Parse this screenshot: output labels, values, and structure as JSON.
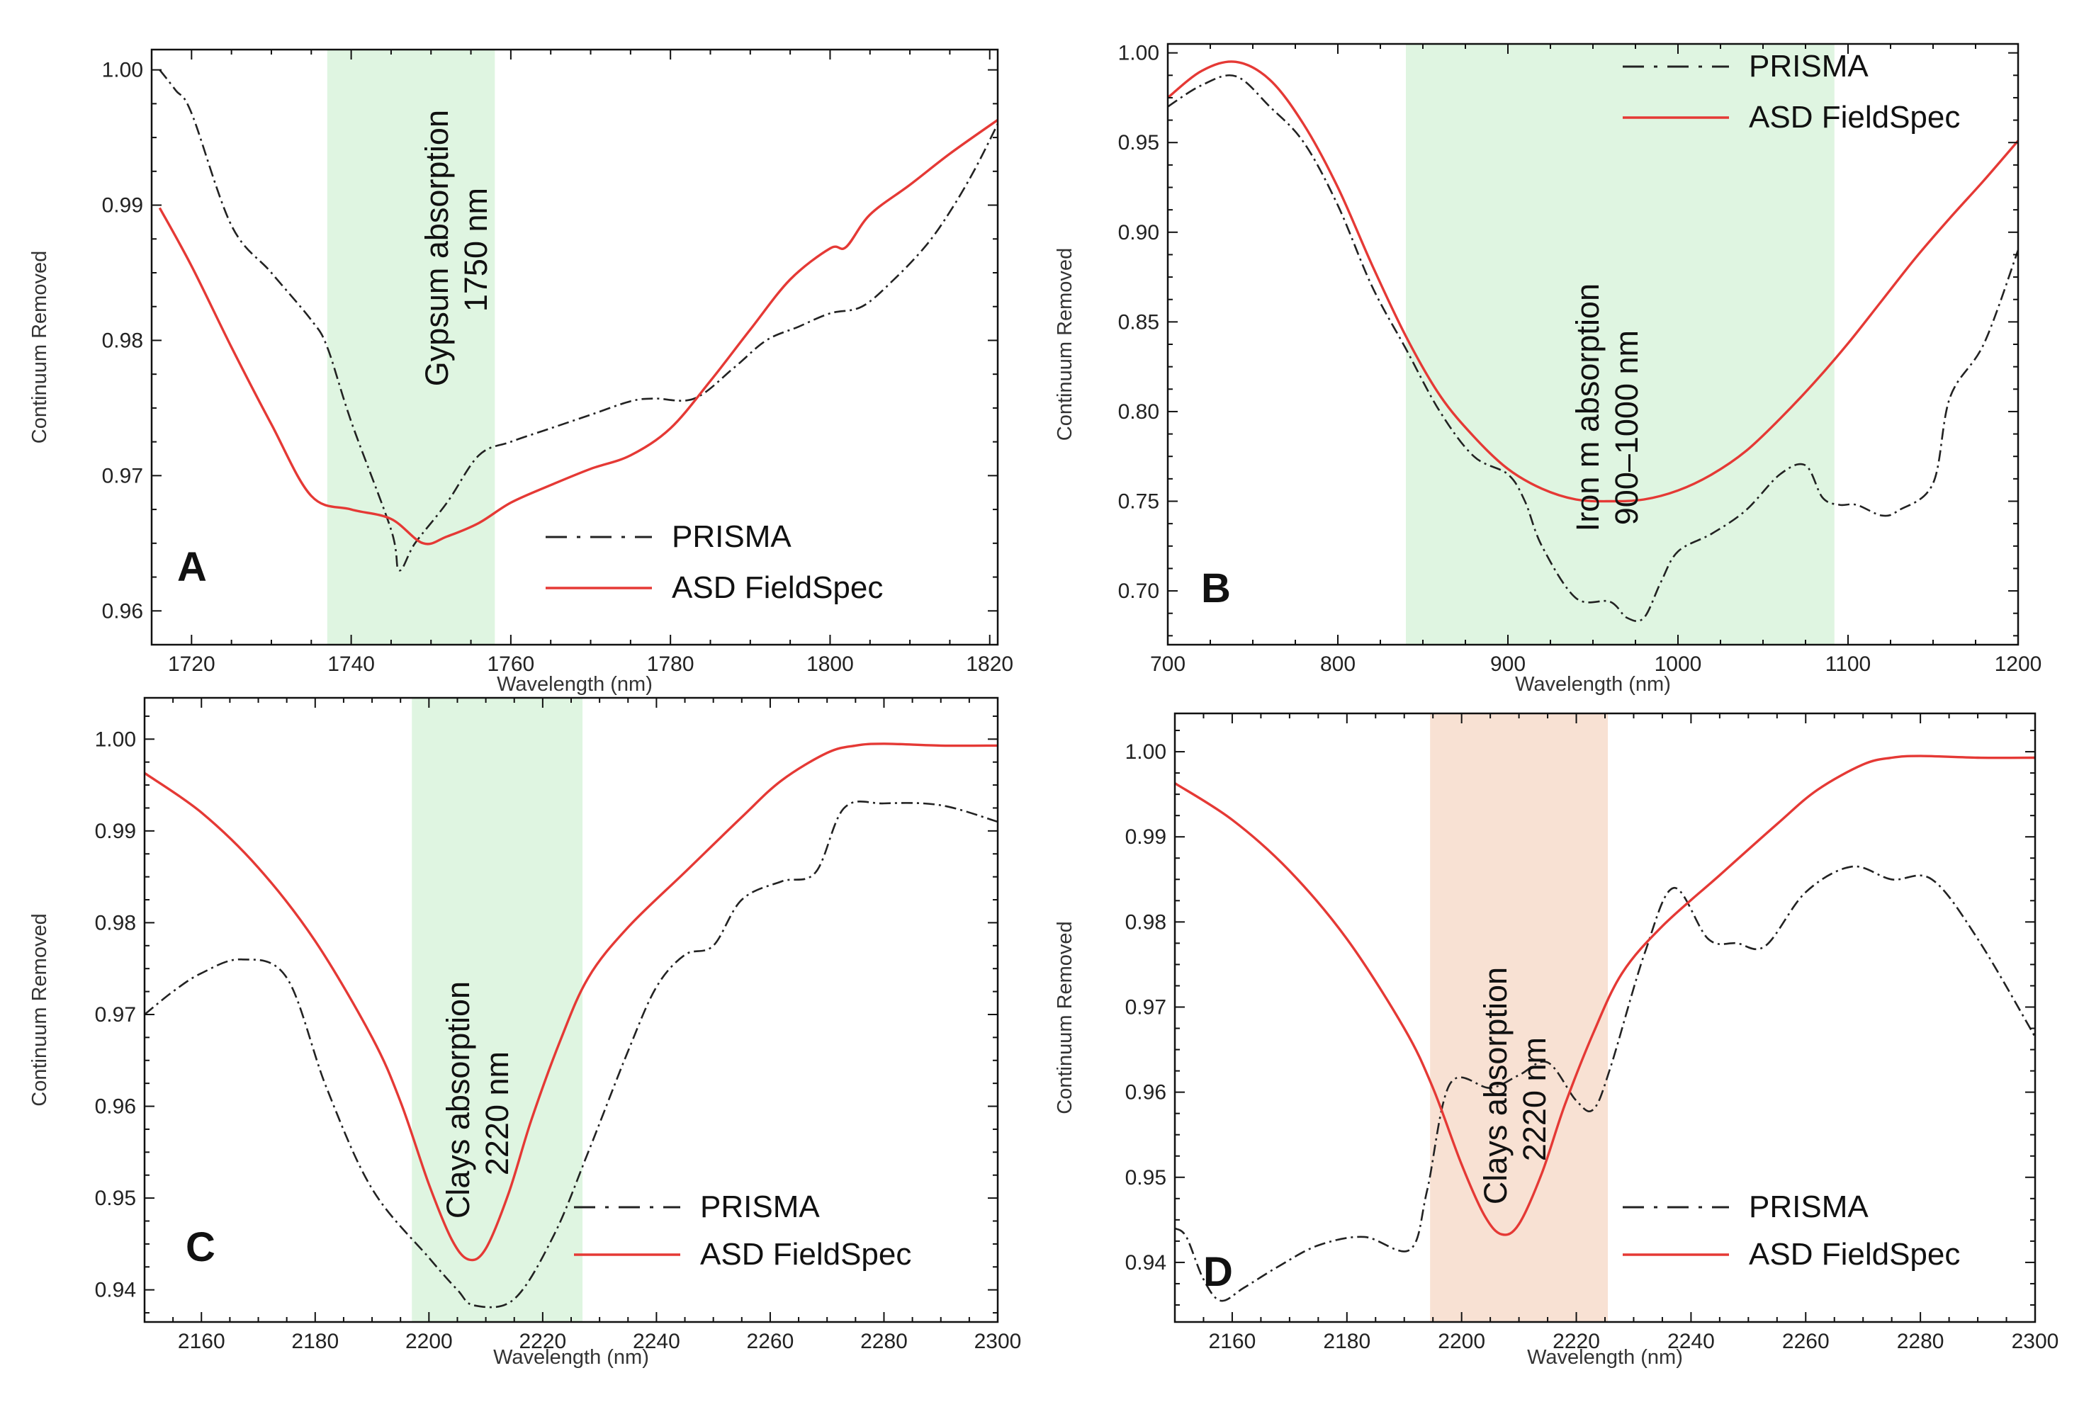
{
  "figure": {
    "background": "#ffffff"
  },
  "styles": {
    "prisma_color": "#222222",
    "asd_color": "#e53935",
    "green_band": "#dff5e1",
    "orange_band": "#f8e1d3"
  },
  "chart_data": [
    {
      "panel": "A",
      "type": "line",
      "xlabel": "Wavelength (nm)",
      "ylabel": "Continuum Removed",
      "xlim": [
        1715,
        1821
      ],
      "ylim": [
        0.9575,
        1.0015
      ],
      "xticks": [
        1720,
        1740,
        1760,
        1780,
        1800,
        1820
      ],
      "yticks": [
        0.96,
        0.97,
        0.98,
        0.99,
        1.0
      ],
      "ytick_labels": [
        "0.96",
        "0.97",
        "0.98",
        "0.99",
        "1.00"
      ],
      "band": {
        "from": 1737,
        "to": 1758,
        "color": "green",
        "label_lines": [
          "Gypsum absorption",
          "1750 nm"
        ]
      },
      "legend": {
        "position": "bottom-right",
        "entries": [
          "PRISMA",
          "ASD FieldSpec"
        ]
      },
      "series": [
        {
          "name": "PRISMA",
          "style": "dashdot",
          "x": [
            1716,
            1718,
            1720,
            1725,
            1730,
            1735,
            1737,
            1740,
            1745,
            1746,
            1748,
            1752,
            1756,
            1760,
            1765,
            1770,
            1775,
            1778,
            1783,
            1788,
            1792,
            1796,
            1800,
            1804,
            1808,
            1812,
            1815,
            1818,
            1821
          ],
          "y": [
            1.0,
            0.9985,
            0.9968,
            0.9885,
            0.985,
            0.9815,
            0.9795,
            0.974,
            0.966,
            0.963,
            0.965,
            0.968,
            0.9715,
            0.9725,
            0.9735,
            0.9745,
            0.9755,
            0.9757,
            0.9757,
            0.978,
            0.98,
            0.981,
            0.982,
            0.9825,
            0.9845,
            0.987,
            0.9895,
            0.9925,
            0.996
          ]
        },
        {
          "name": "ASD FieldSpec",
          "style": "solid",
          "x": [
            1716,
            1720,
            1725,
            1730,
            1735,
            1740,
            1745,
            1749,
            1752,
            1756,
            1760,
            1765,
            1770,
            1775,
            1780,
            1785,
            1790,
            1795,
            1800,
            1802,
            1805,
            1810,
            1815,
            1821
          ],
          "y": [
            0.9898,
            0.9855,
            0.9795,
            0.9738,
            0.9685,
            0.9675,
            0.9668,
            0.965,
            0.9655,
            0.9665,
            0.968,
            0.9693,
            0.9705,
            0.9715,
            0.9735,
            0.977,
            0.9808,
            0.9845,
            0.9868,
            0.9869,
            0.9893,
            0.9915,
            0.9938,
            0.9963
          ]
        }
      ]
    },
    {
      "panel": "B",
      "type": "line",
      "xlabel": "Wavelength (nm)",
      "ylabel": "Continuum Removed",
      "xlim": [
        700,
        1200
      ],
      "ylim": [
        0.67,
        1.005
      ],
      "xticks": [
        700,
        800,
        900,
        1000,
        1100,
        1200
      ],
      "yticks": [
        0.7,
        0.75,
        0.8,
        0.85,
        0.9,
        0.95,
        1.0
      ],
      "ytick_labels": [
        "0.70",
        "0.75",
        "0.80",
        "0.85",
        "0.90",
        "0.95",
        "1.00"
      ],
      "band": {
        "from": 840,
        "to": 1092,
        "color": "green",
        "label_lines": [
          "Iron m absorption",
          "900–1000 nm"
        ]
      },
      "legend": {
        "position": "top-right",
        "entries": [
          "PRISMA",
          "ASD FieldSpec"
        ]
      },
      "series": [
        {
          "name": "PRISMA",
          "style": "dashdot",
          "x": [
            700,
            720,
            740,
            760,
            780,
            800,
            820,
            840,
            860,
            880,
            900,
            910,
            920,
            940,
            960,
            970,
            980,
            990,
            1000,
            1020,
            1040,
            1060,
            1075,
            1085,
            1095,
            1105,
            1120,
            1130,
            1150,
            1160,
            1180,
            1200
          ],
          "y": [
            0.97,
            0.982,
            0.987,
            0.97,
            0.95,
            0.915,
            0.87,
            0.835,
            0.8,
            0.775,
            0.765,
            0.75,
            0.725,
            0.696,
            0.694,
            0.685,
            0.685,
            0.705,
            0.722,
            0.732,
            0.745,
            0.765,
            0.77,
            0.752,
            0.748,
            0.748,
            0.742,
            0.745,
            0.76,
            0.808,
            0.838,
            0.89
          ]
        },
        {
          "name": "ASD FieldSpec",
          "style": "solid",
          "x": [
            700,
            720,
            740,
            760,
            780,
            800,
            820,
            840,
            860,
            880,
            900,
            920,
            940,
            960,
            980,
            1000,
            1020,
            1040,
            1060,
            1080,
            1100,
            1120,
            1140,
            1160,
            1180,
            1200
          ],
          "y": [
            0.975,
            0.99,
            0.995,
            0.985,
            0.96,
            0.925,
            0.882,
            0.842,
            0.809,
            0.786,
            0.768,
            0.757,
            0.751,
            0.75,
            0.751,
            0.756,
            0.765,
            0.778,
            0.796,
            0.816,
            0.838,
            0.862,
            0.886,
            0.908,
            0.929,
            0.951
          ]
        }
      ]
    },
    {
      "panel": "C",
      "type": "line",
      "xlabel": "Wavelength (nm)",
      "ylabel": "Continuum Removed",
      "xlim": [
        2150,
        2300
      ],
      "ylim": [
        0.9365,
        1.0045
      ],
      "xticks": [
        2160,
        2180,
        2200,
        2220,
        2240,
        2260,
        2280,
        2300
      ],
      "yticks": [
        0.94,
        0.95,
        0.96,
        0.97,
        0.98,
        0.99,
        1.0
      ],
      "ytick_labels": [
        "0.94",
        "0.95",
        "0.96",
        "0.97",
        "0.98",
        "0.99",
        "1.00"
      ],
      "band": {
        "from": 2197,
        "to": 2227,
        "color": "green",
        "label_lines": [
          "Clays absorption",
          "2220 nm"
        ]
      },
      "legend": {
        "position": "bottom-right",
        "entries": [
          "PRISMA",
          "ASD FieldSpec"
        ]
      },
      "series": [
        {
          "name": "PRISMA",
          "style": "dashdot",
          "x": [
            2150,
            2155,
            2160,
            2167,
            2175,
            2182,
            2190,
            2200,
            2205,
            2208,
            2215,
            2222,
            2228,
            2235,
            2240,
            2245,
            2250,
            2255,
            2262,
            2268,
            2273,
            2280,
            2290,
            2300
          ],
          "y": [
            0.97,
            0.9725,
            0.9745,
            0.976,
            0.974,
            0.962,
            0.951,
            0.9435,
            0.94,
            0.9383,
            0.939,
            0.946,
            0.955,
            0.966,
            0.973,
            0.9765,
            0.9775,
            0.9825,
            0.9845,
            0.9855,
            0.9925,
            0.993,
            0.9928,
            0.991
          ]
        },
        {
          "name": "ASD FieldSpec",
          "style": "solid",
          "x": [
            2150,
            2160,
            2170,
            2180,
            2190,
            2195,
            2200,
            2204,
            2207,
            2210,
            2214,
            2218,
            2223,
            2228,
            2235,
            2245,
            2255,
            2262,
            2270,
            2275,
            2280,
            2290,
            2300
          ],
          "y": [
            0.9963,
            0.992,
            0.986,
            0.978,
            0.9675,
            0.9605,
            0.9515,
            0.9455,
            0.9433,
            0.9445,
            0.9505,
            0.9585,
            0.967,
            0.974,
            0.9795,
            0.9855,
            0.9915,
            0.9955,
            0.9985,
            0.9993,
            0.9995,
            0.9993,
            0.9993
          ]
        }
      ]
    },
    {
      "panel": "D",
      "type": "line",
      "xlabel": "Wavelength (nm)",
      "ylabel": "Continuum Removed",
      "xlim": [
        2150,
        2300
      ],
      "ylim": [
        0.933,
        1.0045
      ],
      "xticks": [
        2160,
        2180,
        2200,
        2220,
        2240,
        2260,
        2280,
        2300
      ],
      "yticks": [
        0.94,
        0.95,
        0.96,
        0.97,
        0.98,
        0.99,
        1.0
      ],
      "ytick_labels": [
        "0.94",
        "0.95",
        "0.96",
        "0.97",
        "0.98",
        "0.99",
        "1.00"
      ],
      "band": {
        "from": 2194.5,
        "to": 2225.5,
        "color": "orange",
        "label_lines": [
          "Clays absorption",
          "2220 nm"
        ]
      },
      "legend": {
        "position": "bottom-right",
        "entries": [
          "PRISMA",
          "ASD FieldSpec"
        ]
      },
      "series": [
        {
          "name": "PRISMA",
          "style": "dashdot",
          "x": [
            2150,
            2152,
            2155,
            2158,
            2162,
            2168,
            2175,
            2183,
            2191,
            2194,
            2198,
            2205,
            2210,
            2215,
            2220,
            2223,
            2226,
            2232,
            2237,
            2243,
            2248,
            2253,
            2260,
            2268,
            2275,
            2282,
            2290,
            2300
          ],
          "y": [
            0.944,
            0.943,
            0.938,
            0.9355,
            0.937,
            0.9395,
            0.942,
            0.943,
            0.9415,
            0.9485,
            0.961,
            0.9605,
            0.962,
            0.9635,
            0.959,
            0.958,
            0.963,
            0.9765,
            0.984,
            0.978,
            0.9775,
            0.9772,
            0.9835,
            0.9865,
            0.985,
            0.985,
            0.978,
            0.9665
          ]
        },
        {
          "name": "ASD FieldSpec",
          "style": "solid",
          "x": [
            2150,
            2160,
            2170,
            2180,
            2190,
            2195,
            2200,
            2204,
            2207,
            2210,
            2214,
            2218,
            2223,
            2228,
            2235,
            2245,
            2255,
            2262,
            2270,
            2275,
            2280,
            2290,
            2300
          ],
          "y": [
            0.9963,
            0.992,
            0.986,
            0.978,
            0.9675,
            0.9605,
            0.9515,
            0.9455,
            0.9433,
            0.9445,
            0.9505,
            0.9585,
            0.967,
            0.974,
            0.9795,
            0.9855,
            0.9915,
            0.9955,
            0.9985,
            0.9993,
            0.9995,
            0.9993,
            0.9993
          ]
        }
      ]
    }
  ]
}
